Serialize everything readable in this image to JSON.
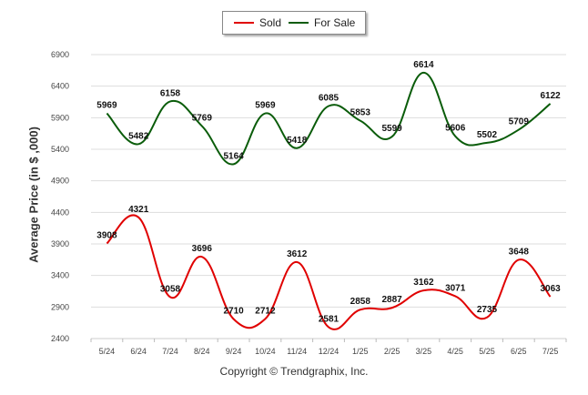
{
  "legend": {
    "sold_label": "Sold",
    "forsale_label": "For Sale"
  },
  "footer": {
    "copyright": "Copyright © Trendgraphix, Inc."
  },
  "colors": {
    "sold": "#e00000",
    "forsale": "#0a5c0a",
    "grid": "#dddddd"
  },
  "chart_data": {
    "type": "line",
    "title": "",
    "xlabel": "",
    "ylabel": "Average Price (in $ ,000)",
    "ylim": [
      2400,
      6900
    ],
    "yticks": [
      2400,
      2900,
      3400,
      3900,
      4400,
      4900,
      5400,
      5900,
      6400,
      6900
    ],
    "grid": true,
    "legend_position": "top-center",
    "categories": [
      "5/24",
      "6/24",
      "7/24",
      "8/24",
      "9/24",
      "10/24",
      "11/24",
      "12/24",
      "1/25",
      "2/25",
      "3/25",
      "4/25",
      "5/25",
      "6/25",
      "7/25"
    ],
    "series": [
      {
        "name": "Sold",
        "values": [
          3908,
          4321,
          3058,
          3696,
          2710,
          2712,
          3612,
          2581,
          2858,
          2887,
          3162,
          3071,
          2735,
          3648,
          3063
        ]
      },
      {
        "name": "For Sale",
        "values": [
          5969,
          5482,
          6158,
          5769,
          5164,
          5969,
          5418,
          6085,
          5853,
          5599,
          6614,
          5606,
          5502,
          5709,
          6122
        ]
      }
    ]
  }
}
